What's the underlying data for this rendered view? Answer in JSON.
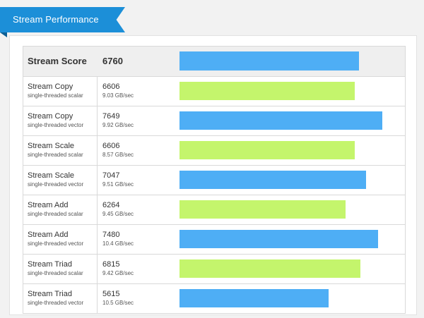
{
  "header": {
    "title": "Stream Performance",
    "color": "#1c8fd8"
  },
  "colors": {
    "blue": "#4eaef5",
    "green": "#c4f56c"
  },
  "bar_scale_max": 8000,
  "score": {
    "label": "Stream Score",
    "value": "6760",
    "color": "#4eaef5"
  },
  "rows": [
    {
      "name": "Stream Copy",
      "sub": "single-threaded scalar",
      "value": "6606",
      "rate": "9.03 GB/sec",
      "color": "#c4f56c"
    },
    {
      "name": "Stream Copy",
      "sub": "single-threaded vector",
      "value": "7649",
      "rate": "9.92 GB/sec",
      "color": "#4eaef5"
    },
    {
      "name": "Stream Scale",
      "sub": "single-threaded scalar",
      "value": "6606",
      "rate": "8.57 GB/sec",
      "color": "#c4f56c"
    },
    {
      "name": "Stream Scale",
      "sub": "single-threaded vector",
      "value": "7047",
      "rate": "9.51 GB/sec",
      "color": "#4eaef5"
    },
    {
      "name": "Stream Add",
      "sub": "single-threaded scalar",
      "value": "6264",
      "rate": "9.45 GB/sec",
      "color": "#c4f56c"
    },
    {
      "name": "Stream Add",
      "sub": "single-threaded vector",
      "value": "7480",
      "rate": "10.4 GB/sec",
      "color": "#4eaef5"
    },
    {
      "name": "Stream Triad",
      "sub": "single-threaded scalar",
      "value": "6815",
      "rate": "9.42 GB/sec",
      "color": "#c4f56c"
    },
    {
      "name": "Stream Triad",
      "sub": "single-threaded vector",
      "value": "5615",
      "rate": "10.5 GB/sec",
      "color": "#4eaef5"
    }
  ]
}
